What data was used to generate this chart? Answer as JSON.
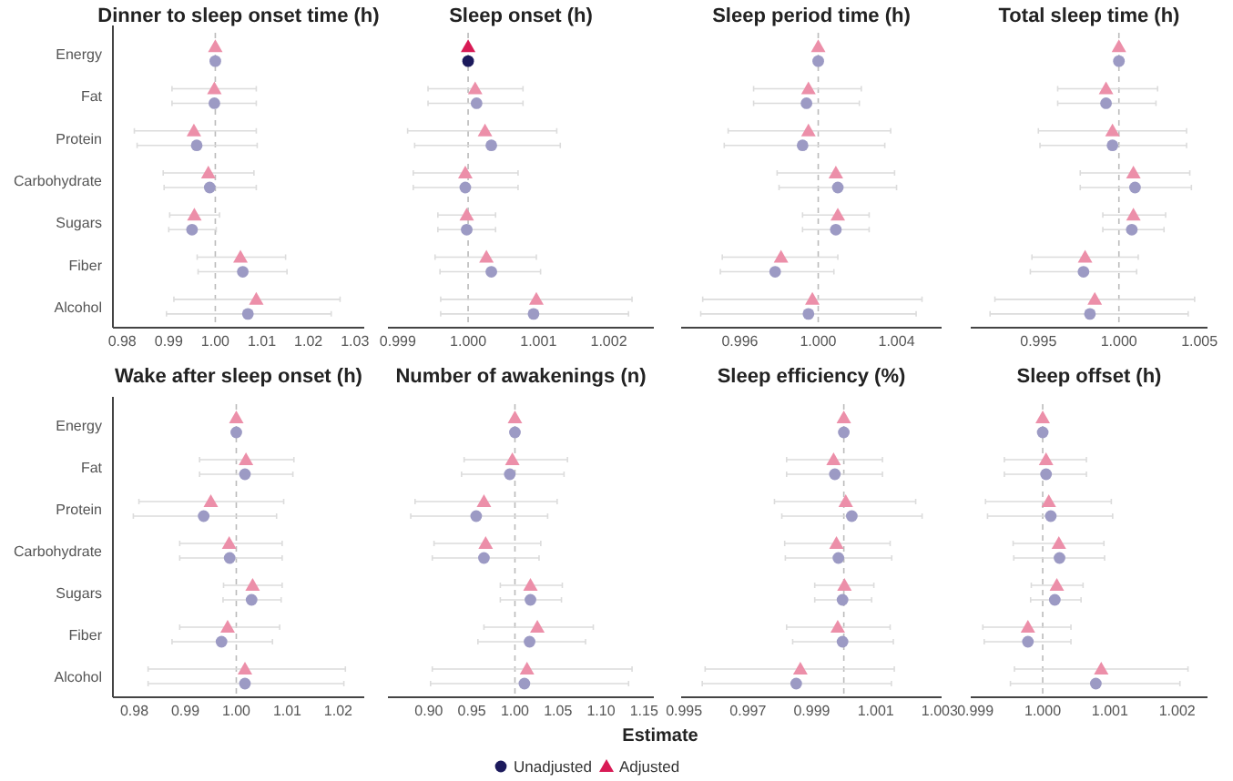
{
  "chart_data": [
    {
      "type": "scatter",
      "orientation": "horizontal",
      "title": "Dinner to sleep onset time (h)",
      "categories": [
        "Energy",
        "Fat",
        "Protein",
        "Carbohydrate",
        "Sugars",
        "Fiber",
        "Alcohol"
      ],
      "xlim": [
        0.978,
        1.032
      ],
      "xticks": [
        0.98,
        0.99,
        {
          "value": 1,
          "label": "1.00"
        },
        1.01,
        1.02,
        1.03
      ],
      "ref_lines": [
        {
          "axis": "x",
          "value": 1,
          "color": "#bbbbbb",
          "line_style": "dashed"
        }
      ],
      "series": [
        {
          "marker": "circle",
          "colors": [
            "#9c9ac4",
            "#9c9ac4",
            "#9c9ac4",
            "#9c9ac4",
            "#9c9ac4",
            "#9c9ac4",
            "#9c9ac4"
          ],
          "values": [
            1.0,
            0.9998,
            0.996,
            0.9988,
            0.995,
            1.0059,
            1.007
          ],
          "errors": [
            null,
            [
              0.9907,
              1.0088
            ],
            [
              0.9832,
              1.009
            ],
            [
              0.989,
              1.0088
            ],
            [
              0.99,
              1.0002
            ],
            [
              0.9963,
              1.0154
            ],
            [
              0.9895,
              1.0249
            ]
          ]
        },
        {
          "marker": "triangle",
          "colors": [
            "#ec8fa9",
            "#ec8fa9",
            "#ec8fa9",
            "#ec8fa9",
            "#ec8fa9",
            "#ec8fa9",
            "#ec8fa9"
          ],
          "values": [
            1.0,
            0.9998,
            0.9954,
            0.9985,
            0.9955,
            1.0054,
            1.0088
          ],
          "errors": [
            null,
            [
              0.9907,
              1.0088
            ],
            [
              0.9826,
              1.0088
            ],
            [
              0.9888,
              1.0083
            ],
            [
              0.9902,
              1.0009
            ],
            [
              0.9961,
              1.0151
            ],
            [
              0.9911,
              1.0268
            ]
          ]
        }
      ]
    },
    {
      "type": "scatter",
      "orientation": "horizontal",
      "title": "Sleep onset (h)",
      "legend": "bottom",
      "categories": [
        null,
        null,
        null,
        null,
        null,
        null,
        null
      ],
      "tick_labels": "x",
      "xlim": [
        0.99886,
        1.00264
      ],
      "xticks": [
        0.999,
        {
          "value": 1,
          "label": "1.000"
        },
        1.001,
        1.002
      ],
      "ref_lines": [
        {
          "axis": "x",
          "value": 1,
          "color": "#bbbbbb",
          "line_style": "dashed"
        }
      ],
      "series": [
        {
          "name": "Unadjusted",
          "marker": "circle",
          "color": "#1c1a5c",
          "colors": [
            "#1c1a5c",
            "#9c9ac4",
            "#9c9ac4",
            "#9c9ac4",
            "#9c9ac4",
            "#9c9ac4",
            "#9c9ac4"
          ],
          "values": [
            1.0,
            1.00012,
            1.00033,
            0.99996,
            0.99998,
            1.00033,
            1.00093
          ],
          "errors": [
            null,
            [
              0.99943,
              1.00078
            ],
            [
              0.99924,
              1.00131
            ],
            [
              0.99922,
              1.00071
            ],
            [
              0.99957,
              1.00039
            ],
            [
              0.9996,
              1.00103
            ],
            [
              0.99961,
              1.00228
            ]
          ]
        },
        {
          "name": "Adjusted",
          "marker": "triangle",
          "color": "#d81b55",
          "colors": [
            "#d81b55",
            "#ec8fa9",
            "#ec8fa9",
            "#ec8fa9",
            "#ec8fa9",
            "#ec8fa9",
            "#ec8fa9"
          ],
          "values": [
            1.0,
            1.0001,
            1.00024,
            0.99996,
            0.99998,
            1.00026,
            1.00097
          ],
          "errors": [
            null,
            [
              0.99943,
              1.00078
            ],
            [
              0.99914,
              1.00126
            ],
            [
              0.99922,
              1.00071
            ],
            [
              0.99957,
              1.00039
            ],
            [
              0.99953,
              1.00097
            ],
            [
              0.99961,
              1.00233
            ]
          ]
        }
      ]
    },
    {
      "type": "scatter",
      "orientation": "horizontal",
      "title": "Sleep period time (h)",
      "categories": [
        null,
        null,
        null,
        null,
        null,
        null,
        null
      ],
      "tick_labels": "x",
      "xlim": [
        0.993,
        1.0063
      ],
      "xticks": [
        0.996,
        {
          "value": 1,
          "label": "1.000"
        },
        1.004
      ],
      "ref_lines": [
        {
          "axis": "x",
          "value": 1,
          "color": "#bbbbbb",
          "line_style": "dashed"
        }
      ],
      "series": [
        {
          "marker": "circle",
          "colors": [
            "#9c9ac4",
            "#9c9ac4",
            "#9c9ac4",
            "#9c9ac4",
            "#9c9ac4",
            "#9c9ac4",
            "#9c9ac4"
          ],
          "values": [
            1.0,
            0.9994,
            0.9992,
            1.001,
            1.0009,
            0.9978,
            0.9995
          ],
          "errors": [
            null,
            [
              0.9967,
              1.0021
            ],
            [
              0.9952,
              1.0034
            ],
            [
              0.998,
              1.004
            ],
            [
              0.9992,
              1.0026
            ],
            [
              0.995,
              1.0008
            ],
            [
              0.994,
              1.005
            ]
          ]
        },
        {
          "marker": "triangle",
          "colors": [
            "#ec8fa9",
            "#ec8fa9",
            "#ec8fa9",
            "#ec8fa9",
            "#ec8fa9",
            "#ec8fa9",
            "#ec8fa9"
          ],
          "values": [
            1.0,
            0.9995,
            0.9995,
            1.0009,
            1.001,
            0.9981,
            0.9997
          ],
          "errors": [
            null,
            [
              0.9967,
              1.0022
            ],
            [
              0.9954,
              1.0037
            ],
            [
              0.9979,
              1.0039
            ],
            [
              0.9992,
              1.0026
            ],
            [
              0.9951,
              1.001
            ],
            [
              0.9941,
              1.0053
            ]
          ]
        }
      ]
    },
    {
      "type": "scatter",
      "orientation": "horizontal",
      "title": "Total sleep time (h)",
      "categories": [
        null,
        null,
        null,
        null,
        null,
        null,
        null
      ],
      "tick_labels": "x",
      "xlim": [
        0.9908,
        1.0055
      ],
      "xticks": [
        0.995,
        {
          "value": 1,
          "label": "1.000"
        },
        1.005
      ],
      "ref_lines": [
        {
          "axis": "x",
          "value": 1,
          "color": "#bbbbbb",
          "line_style": "dashed"
        }
      ],
      "series": [
        {
          "marker": "circle",
          "colors": [
            "#9c9ac4",
            "#9c9ac4",
            "#9c9ac4",
            "#9c9ac4",
            "#9c9ac4",
            "#9c9ac4",
            "#9c9ac4"
          ],
          "values": [
            1.0,
            0.9992,
            0.9996,
            1.001,
            1.0008,
            0.9978,
            0.9982
          ],
          "errors": [
            null,
            [
              0.9962,
              1.0023
            ],
            [
              0.9951,
              1.0042
            ],
            [
              0.9976,
              1.0045
            ],
            [
              0.999,
              1.0028
            ],
            [
              0.9945,
              1.0011
            ],
            [
              0.992,
              1.0043
            ]
          ]
        },
        {
          "marker": "triangle",
          "colors": [
            "#ec8fa9",
            "#ec8fa9",
            "#ec8fa9",
            "#ec8fa9",
            "#ec8fa9",
            "#ec8fa9",
            "#ec8fa9"
          ],
          "values": [
            1.0,
            0.9992,
            0.9996,
            1.0009,
            1.0009,
            0.9979,
            0.9985
          ],
          "errors": [
            null,
            [
              0.9962,
              1.0024
            ],
            [
              0.995,
              1.0042
            ],
            [
              0.9976,
              1.0044
            ],
            [
              0.999,
              1.0029
            ],
            [
              0.9946,
              1.0012
            ],
            [
              0.9923,
              1.0047
            ]
          ]
        }
      ]
    },
    {
      "type": "scatter",
      "orientation": "horizontal",
      "title": "Wake after sleep onset (h)",
      "categories": [
        "Energy",
        "Fat",
        "Protein",
        "Carbohydrate",
        "Sugars",
        "Fiber",
        "Alcohol"
      ],
      "xlim": [
        0.9758,
        1.0251
      ],
      "xticks": [
        0.98,
        0.99,
        {
          "value": 1,
          "label": "1.00"
        },
        1.01,
        1.02
      ],
      "ref_lines": [
        {
          "axis": "x",
          "value": 1,
          "color": "#bbbbbb",
          "line_style": "dashed"
        }
      ],
      "series": [
        {
          "marker": "circle",
          "colors": [
            "#9c9ac4",
            "#9c9ac4",
            "#9c9ac4",
            "#9c9ac4",
            "#9c9ac4",
            "#9c9ac4",
            "#9c9ac4"
          ],
          "values": [
            1.0,
            1.0017,
            0.9936,
            0.9987,
            1.003,
            0.9971,
            1.0017
          ],
          "errors": [
            null,
            [
              0.9928,
              1.0111
            ],
            [
              0.9798,
              1.0079
            ],
            [
              0.9889,
              1.009
            ],
            [
              0.9974,
              1.0088
            ],
            [
              0.9874,
              1.0071
            ],
            [
              0.9827,
              1.0211
            ]
          ]
        },
        {
          "marker": "triangle",
          "colors": [
            "#ec8fa9",
            "#ec8fa9",
            "#ec8fa9",
            "#ec8fa9",
            "#ec8fa9",
            "#ec8fa9",
            "#ec8fa9"
          ],
          "values": [
            1.0,
            1.0019,
            0.995,
            0.9986,
            1.0032,
            0.9983,
            1.0017
          ],
          "errors": [
            null,
            [
              0.9928,
              1.0113
            ],
            [
              0.9809,
              1.0093
            ],
            [
              0.9889,
              1.009
            ],
            [
              0.9975,
              1.009
            ],
            [
              0.9889,
              1.0085
            ],
            [
              0.9827,
              1.0214
            ]
          ]
        }
      ]
    },
    {
      "type": "scatter",
      "orientation": "horizontal",
      "title": "Number of awakenings (n)",
      "xlabel": "Estimate",
      "categories": [
        null,
        null,
        null,
        null,
        null,
        null,
        null
      ],
      "tick_labels": "x",
      "xlim": [
        0.8525,
        1.1613
      ],
      "xticks": [
        {
          "value": 0.9,
          "label": "0.90"
        },
        0.95,
        {
          "value": 1,
          "label": "1.00"
        },
        1.05,
        {
          "value": 1.1,
          "label": "1.10"
        },
        1.15
      ],
      "ref_lines": [
        {
          "axis": "x",
          "value": 1,
          "color": "#bbbbbb",
          "line_style": "dashed"
        }
      ],
      "series": [
        {
          "marker": "circle",
          "colors": [
            "#9c9ac4",
            "#9c9ac4",
            "#9c9ac4",
            "#9c9ac4",
            "#9c9ac4",
            "#9c9ac4",
            "#9c9ac4"
          ],
          "values": [
            1.0,
            0.994,
            0.955,
            0.964,
            1.018,
            1.017,
            1.011
          ],
          "errors": [
            null,
            [
              0.938,
              1.057
            ],
            [
              0.879,
              1.038
            ],
            [
              0.904,
              1.028
            ],
            [
              0.983,
              1.054
            ],
            [
              0.957,
              1.082
            ],
            [
              0.902,
              1.132
            ]
          ]
        },
        {
          "marker": "triangle",
          "colors": [
            "#ec8fa9",
            "#ec8fa9",
            "#ec8fa9",
            "#ec8fa9",
            "#ec8fa9",
            "#ec8fa9",
            "#ec8fa9"
          ],
          "values": [
            1.0,
            0.997,
            0.964,
            0.966,
            1.018,
            1.026,
            1.014
          ],
          "errors": [
            null,
            [
              0.941,
              1.061
            ],
            [
              0.884,
              1.049
            ],
            [
              0.906,
              1.03
            ],
            [
              0.983,
              1.055
            ],
            [
              0.964,
              1.091
            ],
            [
              0.904,
              1.136
            ]
          ]
        }
      ]
    },
    {
      "type": "scatter",
      "orientation": "horizontal",
      "title": "Sleep efficiency (%)",
      "categories": [
        null,
        null,
        null,
        null,
        null,
        null,
        null
      ],
      "tick_labels": "x",
      "xlim": [
        0.99491,
        1.00306
      ],
      "xticks": [
        0.995,
        0.997,
        0.999,
        1.001,
        1.003
      ],
      "ref_lines": [
        {
          "axis": "x",
          "value": 1,
          "color": "#bbbbbb",
          "line_style": "dashed"
        }
      ],
      "series": [
        {
          "marker": "circle",
          "colors": [
            "#9c9ac4",
            "#9c9ac4",
            "#9c9ac4",
            "#9c9ac4",
            "#9c9ac4",
            "#9c9ac4",
            "#9c9ac4"
          ],
          "values": [
            1.0,
            0.99972,
            1.00025,
            0.99983,
            0.99996,
            0.99996,
            0.99851
          ],
          "errors": [
            null,
            [
              0.99821,
              1.00121
            ],
            [
              0.99806,
              1.00245
            ],
            [
              0.99817,
              1.0015
            ],
            [
              0.99909,
              1.00087
            ],
            [
              0.9984,
              1.00155
            ],
            [
              0.99557,
              1.00149
            ]
          ]
        },
        {
          "marker": "triangle",
          "colors": [
            "#ec8fa9",
            "#ec8fa9",
            "#ec8fa9",
            "#ec8fa9",
            "#ec8fa9",
            "#ec8fa9",
            "#ec8fa9"
          ],
          "values": [
            1.0,
            0.99968,
            1.00006,
            0.99977,
            1.00002,
            0.99981,
            0.99864
          ],
          "errors": [
            null,
            [
              0.99821,
              1.00121
            ],
            [
              0.99783,
              1.00225
            ],
            [
              0.99815,
              1.00145
            ],
            [
              0.99909,
              1.00094
            ],
            [
              0.99821,
              1.00145
            ],
            [
              0.99566,
              1.00158
            ]
          ]
        }
      ]
    },
    {
      "type": "scatter",
      "orientation": "horizontal",
      "title": "Sleep offset (h)",
      "categories": [
        null,
        null,
        null,
        null,
        null,
        null,
        null
      ],
      "tick_labels": "x",
      "xlim": [
        0.99893,
        1.00245
      ],
      "xticks": [
        0.999,
        {
          "value": 1,
          "label": "1.000"
        },
        1.001,
        1.002
      ],
      "ref_lines": [
        {
          "axis": "x",
          "value": 1,
          "color": "#bbbbbb",
          "line_style": "dashed"
        }
      ],
      "series": [
        {
          "marker": "circle",
          "colors": [
            "#9c9ac4",
            "#9c9ac4",
            "#9c9ac4",
            "#9c9ac4",
            "#9c9ac4",
            "#9c9ac4",
            "#9c9ac4"
          ],
          "values": [
            1.0,
            1.00005,
            1.00012,
            1.00025,
            1.00018,
            0.99978,
            1.00079
          ],
          "errors": [
            null,
            [
              0.99943,
              1.00065
            ],
            [
              0.99918,
              1.00104
            ],
            [
              0.99957,
              1.00092
            ],
            [
              0.99982,
              1.00057
            ],
            [
              0.99913,
              1.00042
            ],
            [
              0.99952,
              1.00204
            ]
          ]
        },
        {
          "marker": "triangle",
          "colors": [
            "#ec8fa9",
            "#ec8fa9",
            "#ec8fa9",
            "#ec8fa9",
            "#ec8fa9",
            "#ec8fa9",
            "#ec8fa9"
          ],
          "values": [
            1.0,
            1.00005,
            1.00009,
            1.00024,
            1.00021,
            0.99978,
            1.00087
          ],
          "errors": [
            null,
            [
              0.99943,
              1.00065
            ],
            [
              0.99915,
              1.00102
            ],
            [
              0.99956,
              1.00091
            ],
            [
              0.99983,
              1.0006
            ],
            [
              0.99911,
              1.00042
            ],
            [
              0.99958,
              1.00216
            ]
          ]
        }
      ]
    }
  ]
}
